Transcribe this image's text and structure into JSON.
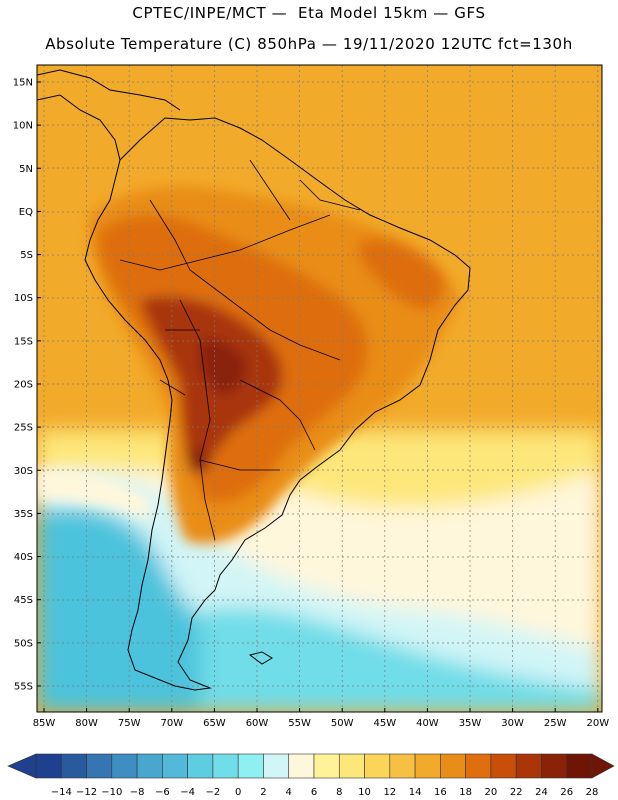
{
  "title_line1": "CPTEC/INPE/MCT —  Eta Model 15km — GFS",
  "title_line2": "Absolute Temperature (C) 850hPa — 19/11/2020 12UTC fct=130h",
  "map": {
    "lon_range": [
      -86,
      -20
    ],
    "lat_range": [
      -59,
      17
    ],
    "lat_ticks": [
      "15N",
      "10N",
      "5N",
      "EQ",
      "5S",
      "10S",
      "15S",
      "20S",
      "25S",
      "30S",
      "35S",
      "40S",
      "45S",
      "50S",
      "55S"
    ],
    "lon_ticks": [
      "85W",
      "80W",
      "75W",
      "70W",
      "65W",
      "60W",
      "55W",
      "50W",
      "45W",
      "40W",
      "35W",
      "30W",
      "25W",
      "20W"
    ]
  },
  "colorbar": {
    "labels": [
      "-14",
      "-12",
      "-10",
      "-8",
      "-6",
      "-4",
      "-2",
      "0",
      "2",
      "4",
      "6",
      "8",
      "10",
      "12",
      "14",
      "16",
      "18",
      "20",
      "22",
      "24",
      "26",
      "28"
    ],
    "colors": [
      "#1f3f8f",
      "#2a5a9e",
      "#3575b2",
      "#3e8ec3",
      "#48a6cf",
      "#52bad8",
      "#5fcde0",
      "#70dde8",
      "#8ef0f0",
      "#d2f5f7",
      "#fff7dc",
      "#fff39a",
      "#fde77a",
      "#fad55a",
      "#f6c045",
      "#f2aa2a",
      "#e98d19",
      "#de6e0e",
      "#c84f0a",
      "#a93508",
      "#8a2207",
      "#6f1505"
    ]
  },
  "legend_colors": {
    "cold_sea": "#4bc3dc",
    "cool": "#d2f5f7",
    "mild": "#fff7dc",
    "warm_ocean": "#f2aa2a",
    "hot_land": "#c84f0a",
    "very_hot": "#8a2207"
  }
}
